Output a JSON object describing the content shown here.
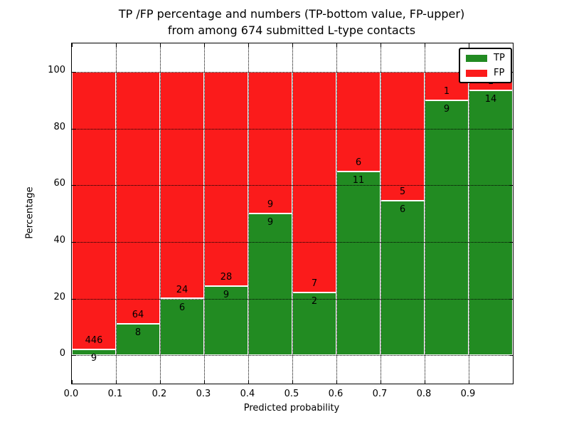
{
  "title": {
    "line1": "TP /FP percentage and numbers (TP-bottom value, FP-upper)",
    "line2": "from among 674 submitted L-type contacts"
  },
  "chart_data": {
    "type": "bar",
    "stacked": true,
    "normalized": "each bar totals 100%",
    "title": "TP /FP percentage and numbers (TP-bottom value, FP-upper) from among 674 submitted L-type contacts",
    "xlabel": "Predicted probability",
    "ylabel": "Percentage",
    "xlim": [
      0.0,
      1.0
    ],
    "ylim": [
      -10,
      110
    ],
    "grid": true,
    "bar_width": 0.1,
    "total_contacts": 674,
    "xticks": {
      "values": [
        0.0,
        0.1,
        0.2,
        0.3,
        0.4,
        0.5,
        0.6,
        0.7,
        0.8,
        0.9
      ],
      "labels": [
        "0.0",
        "0.1",
        "0.2",
        "0.3",
        "0.4",
        "0.5",
        "0.6",
        "0.7",
        "0.8",
        "0.9"
      ]
    },
    "yticks": {
      "values": [
        0,
        20,
        40,
        60,
        80,
        100
      ],
      "labels": [
        "0",
        "20",
        "40",
        "60",
        "80",
        "100"
      ]
    },
    "legend": {
      "position": "upper right",
      "entries": [
        {
          "label": "TP",
          "color": "#228b22"
        },
        {
          "label": "FP",
          "color": "#fb1b1b"
        }
      ]
    },
    "bars": [
      {
        "x0": 0.0,
        "range": "0.0-0.1",
        "tp": 9,
        "fp": 446,
        "tp_pct": 1.98,
        "fp_pct": 98.02
      },
      {
        "x0": 0.1,
        "range": "0.1-0.2",
        "tp": 8,
        "fp": 64,
        "tp_pct": 11.11,
        "fp_pct": 88.89
      },
      {
        "x0": 0.2,
        "range": "0.2-0.3",
        "tp": 6,
        "fp": 24,
        "tp_pct": 20.0,
        "fp_pct": 80.0
      },
      {
        "x0": 0.3,
        "range": "0.3-0.4",
        "tp": 9,
        "fp": 28,
        "tp_pct": 24.32,
        "fp_pct": 75.68
      },
      {
        "x0": 0.4,
        "range": "0.4-0.5",
        "tp": 9,
        "fp": 9,
        "tp_pct": 50.0,
        "fp_pct": 50.0
      },
      {
        "x0": 0.5,
        "range": "0.5-0.6",
        "tp": 2,
        "fp": 7,
        "tp_pct": 22.22,
        "fp_pct": 77.78
      },
      {
        "x0": 0.6,
        "range": "0.6-0.7",
        "tp": 11,
        "fp": 6,
        "tp_pct": 64.71,
        "fp_pct": 35.29
      },
      {
        "x0": 0.7,
        "range": "0.7-0.8",
        "tp": 6,
        "fp": 5,
        "tp_pct": 54.55,
        "fp_pct": 45.45
      },
      {
        "x0": 0.8,
        "range": "0.8-0.9",
        "tp": 9,
        "fp": 1,
        "tp_pct": 90.0,
        "fp_pct": 10.0
      },
      {
        "x0": 0.9,
        "range": "0.9-1.0",
        "tp": 14,
        "fp": 1,
        "tp_pct": 93.33,
        "fp_pct": 6.67
      }
    ]
  }
}
